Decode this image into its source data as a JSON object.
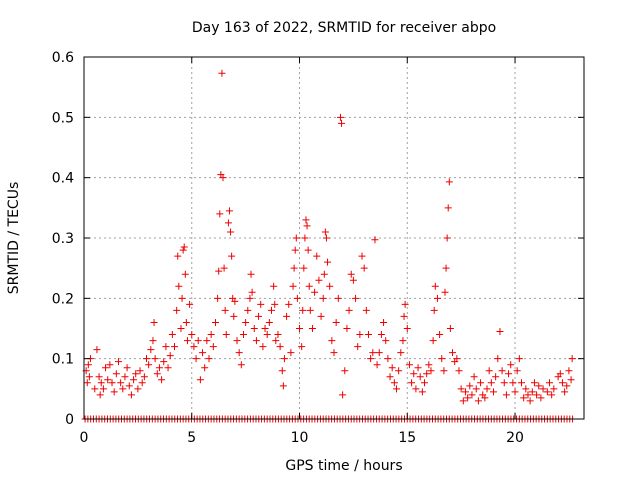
{
  "chart_data": {
    "type": "scatter",
    "title": "Day 163 of 2022, SRMTID for receiver abpo",
    "xlabel": "GPS time / hours",
    "ylabel": "SRMTID / TECUs",
    "xlim": [
      0,
      23.2
    ],
    "ylim": [
      0,
      0.6
    ],
    "xticks": [
      "0",
      "5",
      "10",
      "15",
      "20"
    ],
    "yticks": [
      "0",
      "0.1",
      "0.2",
      "0.3",
      "0.4",
      "0.5",
      "0.6"
    ],
    "grid": true,
    "marker": "plus",
    "color": "#ee0000",
    "series": [
      {
        "name": "SRMTID",
        "points": [
          [
            0.1,
            0.08
          ],
          [
            0.15,
            0.06
          ],
          [
            0.2,
            0.09
          ],
          [
            0.25,
            0.07
          ],
          [
            0.3,
            0.1
          ],
          [
            0.5,
            0.05
          ],
          [
            0.6,
            0.115
          ],
          [
            0.7,
            0.07
          ],
          [
            0.75,
            0.04
          ],
          [
            0.8,
            0.06
          ],
          [
            0.9,
            0.05
          ],
          [
            1.0,
            0.085
          ],
          [
            1.1,
            0.065
          ],
          [
            1.2,
            0.09
          ],
          [
            1.3,
            0.06
          ],
          [
            1.4,
            0.045
          ],
          [
            1.5,
            0.075
          ],
          [
            1.6,
            0.095
          ],
          [
            1.7,
            0.06
          ],
          [
            1.8,
            0.05
          ],
          [
            1.9,
            0.07
          ],
          [
            2.0,
            0.085
          ],
          [
            2.1,
            0.055
          ],
          [
            2.2,
            0.04
          ],
          [
            2.3,
            0.065
          ],
          [
            2.4,
            0.075
          ],
          [
            2.5,
            0.05
          ],
          [
            2.6,
            0.08
          ],
          [
            2.7,
            0.06
          ],
          [
            2.8,
            0.07
          ],
          [
            2.9,
            0.1
          ],
          [
            3.0,
            0.09
          ],
          [
            3.1,
            0.115
          ],
          [
            3.2,
            0.13
          ],
          [
            3.25,
            0.16
          ],
          [
            3.3,
            0.1
          ],
          [
            3.4,
            0.075
          ],
          [
            3.5,
            0.085
          ],
          [
            3.6,
            0.065
          ],
          [
            3.7,
            0.095
          ],
          [
            3.8,
            0.12
          ],
          [
            3.9,
            0.085
          ],
          [
            4.0,
            0.105
          ],
          [
            4.1,
            0.14
          ],
          [
            4.2,
            0.12
          ],
          [
            4.3,
            0.18
          ],
          [
            4.35,
            0.27
          ],
          [
            4.4,
            0.22
          ],
          [
            4.5,
            0.15
          ],
          [
            4.55,
            0.2
          ],
          [
            4.6,
            0.28
          ],
          [
            4.65,
            0.285
          ],
          [
            4.7,
            0.24
          ],
          [
            4.75,
            0.16
          ],
          [
            4.8,
            0.13
          ],
          [
            4.9,
            0.19
          ],
          [
            5.0,
            0.14
          ],
          [
            5.1,
            0.12
          ],
          [
            5.2,
            0.1
          ],
          [
            5.3,
            0.13
          ],
          [
            5.4,
            0.065
          ],
          [
            5.5,
            0.11
          ],
          [
            5.6,
            0.085
          ],
          [
            5.7,
            0.13
          ],
          [
            5.8,
            0.1
          ],
          [
            5.9,
            0.14
          ],
          [
            6.0,
            0.12
          ],
          [
            6.1,
            0.16
          ],
          [
            6.2,
            0.2
          ],
          [
            6.25,
            0.245
          ],
          [
            6.3,
            0.34
          ],
          [
            6.35,
            0.405
          ],
          [
            6.4,
            0.573
          ],
          [
            6.45,
            0.4
          ],
          [
            6.5,
            0.25
          ],
          [
            6.55,
            0.18
          ],
          [
            6.6,
            0.14
          ],
          [
            6.7,
            0.325
          ],
          [
            6.75,
            0.345
          ],
          [
            6.8,
            0.31
          ],
          [
            6.85,
            0.27
          ],
          [
            6.9,
            0.2
          ],
          [
            6.95,
            0.17
          ],
          [
            7.0,
            0.195
          ],
          [
            7.1,
            0.13
          ],
          [
            7.2,
            0.11
          ],
          [
            7.3,
            0.09
          ],
          [
            7.4,
            0.14
          ],
          [
            7.5,
            0.16
          ],
          [
            7.6,
            0.18
          ],
          [
            7.7,
            0.2
          ],
          [
            7.75,
            0.24
          ],
          [
            7.8,
            0.21
          ],
          [
            7.9,
            0.15
          ],
          [
            8.0,
            0.13
          ],
          [
            8.1,
            0.17
          ],
          [
            8.2,
            0.19
          ],
          [
            8.3,
            0.12
          ],
          [
            8.4,
            0.15
          ],
          [
            8.5,
            0.14
          ],
          [
            8.6,
            0.16
          ],
          [
            8.7,
            0.18
          ],
          [
            8.8,
            0.22
          ],
          [
            8.85,
            0.19
          ],
          [
            8.9,
            0.13
          ],
          [
            9.0,
            0.14
          ],
          [
            9.1,
            0.12
          ],
          [
            9.2,
            0.08
          ],
          [
            9.25,
            0.055
          ],
          [
            9.3,
            0.1
          ],
          [
            9.4,
            0.17
          ],
          [
            9.5,
            0.19
          ],
          [
            9.6,
            0.11
          ],
          [
            9.7,
            0.22
          ],
          [
            9.75,
            0.25
          ],
          [
            9.8,
            0.28
          ],
          [
            9.85,
            0.3
          ],
          [
            9.9,
            0.2
          ],
          [
            10.0,
            0.15
          ],
          [
            10.1,
            0.12
          ],
          [
            10.15,
            0.18
          ],
          [
            10.2,
            0.25
          ],
          [
            10.25,
            0.3
          ],
          [
            10.3,
            0.33
          ],
          [
            10.35,
            0.32
          ],
          [
            10.4,
            0.28
          ],
          [
            10.45,
            0.22
          ],
          [
            10.5,
            0.18
          ],
          [
            10.6,
            0.15
          ],
          [
            10.7,
            0.21
          ],
          [
            10.8,
            0.27
          ],
          [
            10.9,
            0.23
          ],
          [
            11.0,
            0.17
          ],
          [
            11.1,
            0.2
          ],
          [
            11.15,
            0.24
          ],
          [
            11.2,
            0.31
          ],
          [
            11.25,
            0.3
          ],
          [
            11.3,
            0.26
          ],
          [
            11.4,
            0.22
          ],
          [
            11.5,
            0.13
          ],
          [
            11.6,
            0.11
          ],
          [
            11.7,
            0.16
          ],
          [
            11.8,
            0.2
          ],
          [
            11.9,
            0.5
          ],
          [
            11.95,
            0.49
          ],
          [
            12.0,
            0.04
          ],
          [
            12.1,
            0.08
          ],
          [
            12.2,
            0.15
          ],
          [
            12.3,
            0.18
          ],
          [
            12.4,
            0.24
          ],
          [
            12.5,
            0.23
          ],
          [
            12.6,
            0.2
          ],
          [
            12.7,
            0.12
          ],
          [
            12.8,
            0.14
          ],
          [
            12.9,
            0.27
          ],
          [
            13.0,
            0.25
          ],
          [
            13.1,
            0.18
          ],
          [
            13.2,
            0.14
          ],
          [
            13.3,
            0.1
          ],
          [
            13.4,
            0.11
          ],
          [
            13.5,
            0.297
          ],
          [
            13.6,
            0.09
          ],
          [
            13.7,
            0.11
          ],
          [
            13.8,
            0.14
          ],
          [
            13.9,
            0.16
          ],
          [
            14.0,
            0.13
          ],
          [
            14.1,
            0.1
          ],
          [
            14.2,
            0.07
          ],
          [
            14.3,
            0.085
          ],
          [
            14.4,
            0.06
          ],
          [
            14.5,
            0.05
          ],
          [
            14.6,
            0.08
          ],
          [
            14.7,
            0.11
          ],
          [
            14.8,
            0.13
          ],
          [
            14.85,
            0.17
          ],
          [
            14.9,
            0.19
          ],
          [
            15.0,
            0.15
          ],
          [
            15.1,
            0.09
          ],
          [
            15.2,
            0.06
          ],
          [
            15.3,
            0.075
          ],
          [
            15.4,
            0.05
          ],
          [
            15.5,
            0.085
          ],
          [
            15.6,
            0.07
          ],
          [
            15.7,
            0.045
          ],
          [
            15.8,
            0.06
          ],
          [
            15.9,
            0.075
          ],
          [
            16.0,
            0.09
          ],
          [
            16.1,
            0.08
          ],
          [
            16.2,
            0.13
          ],
          [
            16.25,
            0.18
          ],
          [
            16.3,
            0.22
          ],
          [
            16.4,
            0.2
          ],
          [
            16.5,
            0.14
          ],
          [
            16.6,
            0.1
          ],
          [
            16.7,
            0.08
          ],
          [
            16.75,
            0.21
          ],
          [
            16.8,
            0.25
          ],
          [
            16.85,
            0.3
          ],
          [
            16.9,
            0.35
          ],
          [
            16.95,
            0.393
          ],
          [
            17.0,
            0.15
          ],
          [
            17.1,
            0.11
          ],
          [
            17.2,
            0.095
          ],
          [
            17.3,
            0.1
          ],
          [
            17.4,
            0.08
          ],
          [
            17.5,
            0.05
          ],
          [
            17.6,
            0.03
          ],
          [
            17.7,
            0.045
          ],
          [
            17.8,
            0.035
          ],
          [
            17.9,
            0.055
          ],
          [
            18.0,
            0.04
          ],
          [
            18.1,
            0.07
          ],
          [
            18.2,
            0.05
          ],
          [
            18.3,
            0.03
          ],
          [
            18.4,
            0.06
          ],
          [
            18.5,
            0.04
          ],
          [
            18.6,
            0.035
          ],
          [
            18.7,
            0.05
          ],
          [
            18.8,
            0.08
          ],
          [
            18.9,
            0.06
          ],
          [
            19.0,
            0.045
          ],
          [
            19.1,
            0.07
          ],
          [
            19.2,
            0.1
          ],
          [
            19.3,
            0.145
          ],
          [
            19.4,
            0.08
          ],
          [
            19.5,
            0.06
          ],
          [
            19.6,
            0.04
          ],
          [
            19.7,
            0.075
          ],
          [
            19.8,
            0.09
          ],
          [
            19.9,
            0.06
          ],
          [
            20.0,
            0.045
          ],
          [
            20.1,
            0.08
          ],
          [
            20.2,
            0.1
          ],
          [
            20.3,
            0.06
          ],
          [
            20.4,
            0.035
          ],
          [
            20.5,
            0.05
          ],
          [
            20.6,
            0.04
          ],
          [
            20.7,
            0.03
          ],
          [
            20.8,
            0.045
          ],
          [
            20.9,
            0.06
          ],
          [
            21.0,
            0.04
          ],
          [
            21.1,
            0.055
          ],
          [
            21.2,
            0.035
          ],
          [
            21.3,
            0.05
          ],
          [
            21.5,
            0.045
          ],
          [
            21.6,
            0.06
          ],
          [
            21.7,
            0.04
          ],
          [
            21.8,
            0.05
          ],
          [
            22.0,
            0.07
          ],
          [
            22.1,
            0.075
          ],
          [
            22.2,
            0.06
          ],
          [
            22.3,
            0.045
          ],
          [
            22.4,
            0.055
          ],
          [
            22.5,
            0.08
          ],
          [
            22.6,
            0.065
          ],
          [
            22.65,
            0.1
          ]
        ]
      }
    ],
    "zero_markers": {
      "value": 0,
      "x_start": 0.05,
      "x_end": 22.7,
      "x_step": 0.13
    }
  }
}
